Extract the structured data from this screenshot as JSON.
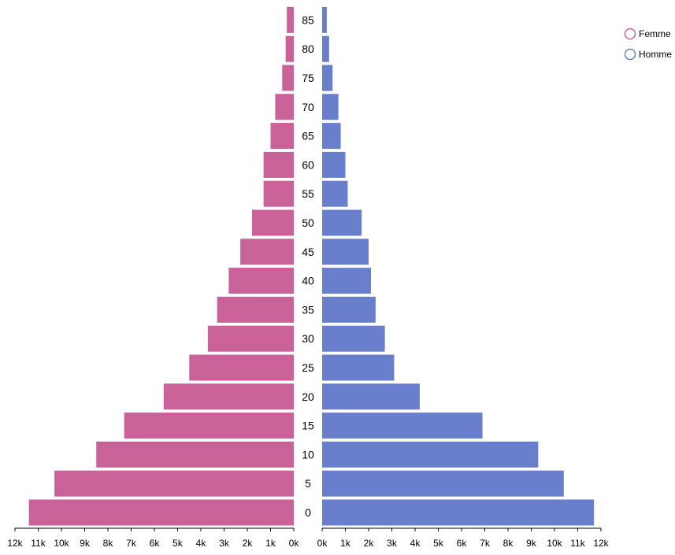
{
  "chart_data": {
    "type": "bar",
    "orientation": "horizontal-pyramid",
    "categories": [
      "0",
      "5",
      "10",
      "15",
      "20",
      "25",
      "30",
      "35",
      "40",
      "45",
      "50",
      "55",
      "60",
      "65",
      "70",
      "75",
      "80",
      "85"
    ],
    "series": [
      {
        "name": "Femme",
        "side": "left",
        "values": [
          11400,
          10300,
          8500,
          7300,
          5600,
          4500,
          3700,
          3300,
          2800,
          2300,
          1800,
          1300,
          1300,
          1000,
          800,
          500,
          350,
          300
        ]
      },
      {
        "name": "Homme",
        "side": "right",
        "values": [
          11700,
          10400,
          9300,
          6900,
          4200,
          3100,
          2700,
          2300,
          2100,
          2000,
          1700,
          1100,
          1000,
          800,
          700,
          450,
          300,
          200
        ]
      }
    ],
    "xlim": [
      0,
      12000
    ],
    "left_ticks": [
      "12k",
      "11k",
      "10k",
      "9k",
      "8k",
      "7k",
      "6k",
      "5k",
      "4k",
      "3k",
      "2k",
      "1k",
      "0k"
    ],
    "right_ticks": [
      "0k",
      "1k",
      "2k",
      "3k",
      "4k",
      "5k",
      "6k",
      "7k",
      "8k",
      "9k",
      "10k",
      "11k",
      "12k"
    ],
    "legend": [
      {
        "label": "Femme",
        "color": "#c86299"
      },
      {
        "label": "Homme",
        "color": "#6a7fcb"
      }
    ],
    "legend_position": "top-right",
    "grid": false
  }
}
